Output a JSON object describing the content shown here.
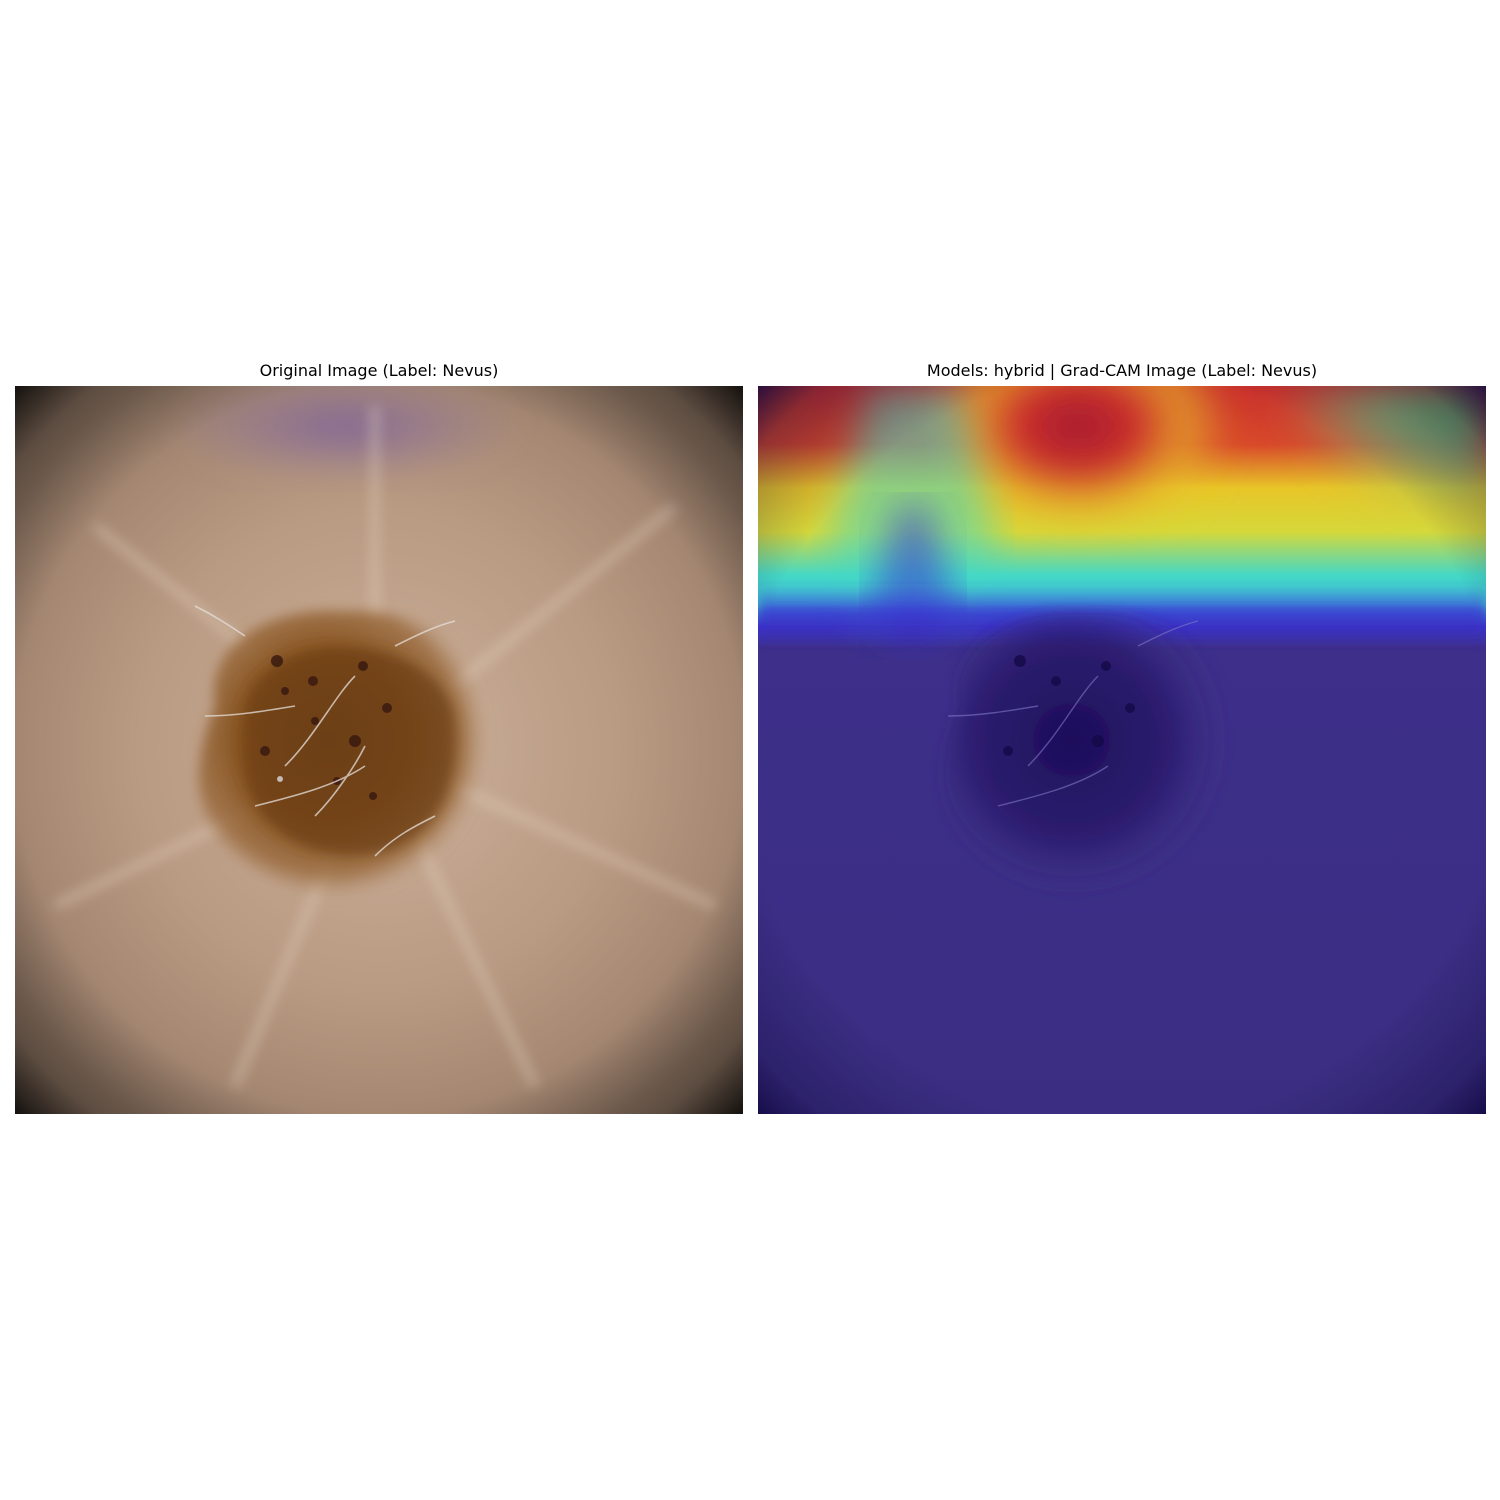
{
  "panels": [
    {
      "title": "Original Image (Label: Nevus)",
      "image": "dermoscopy-lesion-image"
    },
    {
      "title": "Models: hybrid | Grad-CAM Image (Label: Nevus)",
      "image": "grad-cam-heatmap-overlay"
    }
  ],
  "colors": {
    "skin": "#b99a82",
    "lesion": "#7a4a22",
    "vignette": "#000000",
    "heatmap_low": "#3b2e82",
    "heatmap_mid": "#3fd6c8",
    "heatmap_high": "#a3202a"
  }
}
